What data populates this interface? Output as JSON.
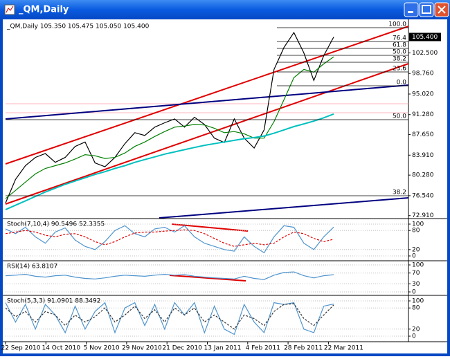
{
  "window": {
    "title": "_QM,Daily"
  },
  "chart_data": [
    {
      "type": "line",
      "title": "_QM,Daily 105.350 105.475 105.050 105.400",
      "ylim": [
        72.5,
        108.1
      ],
      "yticks": [
        {
          "value": 72.91,
          "label": "72.910"
        },
        {
          "value": 76.54,
          "label": "76.540"
        },
        {
          "value": 80.28,
          "label": "80.280"
        },
        {
          "value": 83.91,
          "label": "83.910"
        },
        {
          "value": 87.65,
          "label": "87.650"
        },
        {
          "value": 91.28,
          "label": "91.280"
        },
        {
          "value": 95.02,
          "label": "95.020"
        },
        {
          "value": 98.76,
          "label": "98.760"
        },
        {
          "value": 102.5,
          "label": "102.500"
        }
      ],
      "last_price": {
        "value": 105.4,
        "label": "105.400"
      },
      "series": [
        {
          "name": "Close",
          "color": "#000000",
          "values": [
            75.2,
            79.5,
            82.0,
            83.5,
            84.2,
            82.6,
            83.5,
            85.5,
            86.3,
            82.5,
            81.8,
            83.5,
            86.0,
            88.0,
            87.5,
            89.0,
            89.8,
            90.5,
            89.0,
            90.8,
            89.5,
            87.0,
            86.2,
            90.5,
            87.0,
            85.2,
            88.5,
            99.5,
            103.5,
            106.2,
            102.5,
            97.5,
            102.0,
            105.4
          ]
        },
        {
          "name": "MA fast",
          "color": "#008000",
          "values": [
            76.0,
            77.5,
            79.0,
            80.5,
            81.5,
            82.0,
            82.5,
            83.2,
            84.0,
            83.8,
            83.3,
            83.5,
            84.3,
            85.5,
            86.3,
            87.3,
            88.2,
            89.0,
            89.2,
            89.5,
            89.4,
            88.8,
            88.0,
            88.2,
            87.8,
            87.0,
            87.0,
            90.0,
            94.0,
            98.0,
            99.5,
            99.0,
            100.5,
            101.8
          ]
        },
        {
          "name": "MA slow",
          "color": "#00c0c0",
          "values": [
            74.0,
            74.8,
            75.6,
            76.4,
            77.2,
            77.9,
            78.6,
            79.2,
            79.8,
            80.4,
            80.9,
            81.5,
            82.0,
            82.6,
            83.1,
            83.6,
            84.1,
            84.5,
            84.9,
            85.3,
            85.7,
            86.0,
            86.3,
            86.6,
            86.9,
            87.1,
            87.4,
            87.9,
            88.5,
            89.1,
            89.6,
            90.1,
            90.7,
            91.4
          ]
        }
      ]
    },
    {
      "type": "line",
      "title": "Stoch(7,10,4) 90.5496 52.3355",
      "ylim": [
        0,
        100
      ],
      "yticks": [
        0,
        20,
        80,
        100
      ],
      "series": [
        {
          "name": "Main",
          "color": "#4f94cd",
          "values": [
            85,
            70,
            90,
            60,
            40,
            75,
            88,
            50,
            30,
            20,
            45,
            80,
            95,
            70,
            60,
            85,
            90,
            75,
            95,
            60,
            40,
            30,
            20,
            15,
            60,
            30,
            10,
            60,
            95,
            90,
            40,
            20,
            60,
            90.5496
          ]
        },
        {
          "name": "Signal",
          "color": "#e00000",
          "values": [
            70,
            75,
            80,
            75,
            65,
            60,
            68,
            70,
            60,
            45,
            35,
            45,
            60,
            72,
            75,
            75,
            78,
            80,
            82,
            80,
            70,
            55,
            40,
            30,
            35,
            40,
            35,
            40,
            60,
            75,
            70,
            55,
            45,
            52.3355
          ]
        }
      ]
    },
    {
      "type": "line",
      "title": "RSI(14) 63.8107",
      "ylim": [
        0,
        100
      ],
      "yticks": [
        0,
        30,
        70,
        100
      ],
      "series": [
        {
          "name": "RSI",
          "color": "#4f94cd",
          "values": [
            60,
            62,
            65,
            58,
            55,
            60,
            62,
            55,
            50,
            48,
            52,
            58,
            62,
            60,
            58,
            62,
            65,
            62,
            64,
            58,
            55,
            52,
            50,
            48,
            58,
            50,
            46,
            62,
            72,
            74,
            60,
            52,
            60,
            63.8107
          ]
        }
      ]
    },
    {
      "type": "line",
      "title": "Stoch(5,3,3) 91.0901 88.3492",
      "ylim": [
        0,
        100
      ],
      "yticks": [
        0,
        20,
        80,
        100
      ],
      "series": [
        {
          "name": "Main",
          "color": "#4f94cd",
          "values": [
            95,
            40,
            90,
            20,
            90,
            60,
            10,
            85,
            20,
            70,
            95,
            10,
            80,
            95,
            30,
            90,
            20,
            95,
            60,
            95,
            10,
            85,
            20,
            5,
            90,
            40,
            10,
            95,
            90,
            95,
            20,
            10,
            85,
            91.0901
          ]
        },
        {
          "name": "Signal",
          "color": "#333333",
          "values": [
            80,
            55,
            70,
            40,
            70,
            60,
            30,
            60,
            40,
            55,
            80,
            40,
            60,
            85,
            50,
            75,
            40,
            80,
            60,
            80,
            40,
            60,
            40,
            20,
            60,
            50,
            30,
            70,
            90,
            92,
            50,
            30,
            60,
            88.3492
          ]
        }
      ]
    }
  ],
  "x_axis_labels": [
    "22 Sep 2010",
    "14 Oct 2010",
    "5 Nov 2010",
    "29 Nov 2010",
    "21 Dec 2010",
    "13 Jan 2011",
    "4 Feb 2011",
    "28 Feb 2011",
    "22 Mar 2011"
  ],
  "fib_labels": [
    "100.0",
    "76.4",
    "61.8",
    "50.0",
    "38.2",
    "23.6",
    "0.0",
    "50.0",
    "38.2"
  ]
}
